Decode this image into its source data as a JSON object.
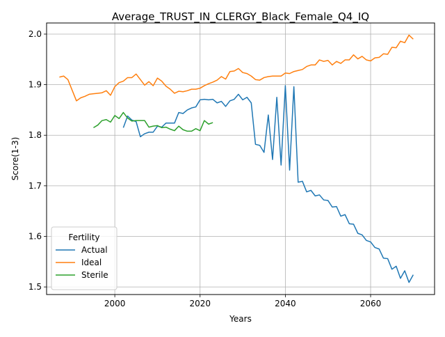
{
  "chart_data": {
    "type": "line",
    "title": "Average_TRUST_IN_CLERGY_Black_Female_Q4_IQ",
    "xlabel": "Years",
    "ylabel": "Score(1-3)",
    "xlim": [
      1984,
      2075
    ],
    "ylim": [
      1.485,
      2.022
    ],
    "xticks": [
      2000,
      2020,
      2040,
      2060
    ],
    "yticks": [
      1.5,
      1.6,
      1.7,
      1.8,
      1.9,
      2.0
    ],
    "grid": true,
    "legend": {
      "title": "Fertility",
      "position": "lower-left"
    },
    "series": [
      {
        "name": "Actual",
        "color": "#1f77b4",
        "x": [
          2002,
          2003,
          2004,
          2005,
          2006,
          2007,
          2008,
          2009,
          2010,
          2011,
          2012,
          2013,
          2014,
          2015,
          2016,
          2017,
          2018,
          2019,
          2020,
          2021,
          2022,
          2023,
          2024,
          2025,
          2026,
          2027,
          2028,
          2029,
          2030,
          2031,
          2032,
          2033,
          2034,
          2035,
          2036,
          2037,
          2038,
          2039,
          2040,
          2041,
          2042,
          2043,
          2044,
          2045,
          2046,
          2047,
          2048,
          2049,
          2050,
          2051,
          2052,
          2053,
          2054,
          2055,
          2056,
          2057,
          2058,
          2059,
          2060,
          2061,
          2062,
          2063,
          2064,
          2065,
          2066,
          2067,
          2068,
          2069,
          2070
        ],
        "values": [
          1.815,
          1.838,
          1.83,
          1.827,
          1.797,
          1.803,
          1.806,
          1.806,
          1.818,
          1.816,
          1.824,
          1.824,
          1.824,
          1.845,
          1.843,
          1.85,
          1.854,
          1.856,
          1.87,
          1.871,
          1.87,
          1.871,
          1.864,
          1.867,
          1.857,
          1.868,
          1.871,
          1.881,
          1.87,
          1.875,
          1.864,
          1.782,
          1.78,
          1.766,
          1.84,
          1.752,
          1.875,
          1.741,
          1.898,
          1.731,
          1.896,
          1.707,
          1.709,
          1.688,
          1.691,
          1.68,
          1.682,
          1.672,
          1.671,
          1.658,
          1.659,
          1.64,
          1.643,
          1.625,
          1.624,
          1.606,
          1.603,
          1.592,
          1.589,
          1.578,
          1.575,
          1.557,
          1.556,
          1.535,
          1.541,
          1.517,
          1.532,
          1.509,
          1.524
        ]
      },
      {
        "name": "Ideal",
        "color": "#ff7f0e",
        "x": [
          1987,
          1988,
          1989,
          1990,
          1991,
          1992,
          1993,
          1994,
          1995,
          1996,
          1997,
          1998,
          1999,
          2000,
          2001,
          2002,
          2003,
          2004,
          2005,
          2006,
          2007,
          2008,
          2009,
          2010,
          2011,
          2012,
          2013,
          2014,
          2015,
          2016,
          2017,
          2018,
          2019,
          2020,
          2021,
          2022,
          2023,
          2024,
          2025,
          2026,
          2027,
          2028,
          2029,
          2030,
          2031,
          2032,
          2033,
          2034,
          2035,
          2036,
          2037,
          2038,
          2039,
          2040,
          2041,
          2042,
          2043,
          2044,
          2045,
          2046,
          2047,
          2048,
          2049,
          2050,
          2051,
          2052,
          2053,
          2054,
          2055,
          2056,
          2057,
          2058,
          2059,
          2060,
          2061,
          2062,
          2063,
          2064,
          2065,
          2066,
          2067,
          2068,
          2069,
          2070
        ],
        "values": [
          1.915,
          1.917,
          1.91,
          1.889,
          1.868,
          1.874,
          1.877,
          1.881,
          1.882,
          1.883,
          1.884,
          1.888,
          1.879,
          1.896,
          1.904,
          1.907,
          1.914,
          1.914,
          1.921,
          1.91,
          1.899,
          1.906,
          1.898,
          1.913,
          1.907,
          1.897,
          1.891,
          1.883,
          1.887,
          1.886,
          1.888,
          1.891,
          1.891,
          1.893,
          1.898,
          1.902,
          1.905,
          1.909,
          1.916,
          1.911,
          1.926,
          1.927,
          1.932,
          1.924,
          1.922,
          1.917,
          1.91,
          1.909,
          1.914,
          1.916,
          1.917,
          1.917,
          1.917,
          1.923,
          1.922,
          1.926,
          1.928,
          1.93,
          1.936,
          1.939,
          1.939,
          1.949,
          1.946,
          1.948,
          1.939,
          1.946,
          1.942,
          1.949,
          1.949,
          1.959,
          1.951,
          1.956,
          1.949,
          1.947,
          1.953,
          1.954,
          1.961,
          1.96,
          1.974,
          1.973,
          1.986,
          1.983,
          1.998,
          1.99
        ]
      },
      {
        "name": "Sterile",
        "color": "#2ca02c",
        "x": [
          1995,
          1996,
          1997,
          1998,
          1999,
          2000,
          2001,
          2002,
          2003,
          2004,
          2005,
          2006,
          2007,
          2008,
          2009,
          2010,
          2011,
          2012,
          2013,
          2014,
          2015,
          2016,
          2017,
          2018,
          2019,
          2020,
          2021,
          2022,
          2023
        ],
        "values": [
          1.815,
          1.82,
          1.829,
          1.831,
          1.826,
          1.839,
          1.833,
          1.845,
          1.834,
          1.828,
          1.829,
          1.829,
          1.829,
          1.816,
          1.818,
          1.819,
          1.815,
          1.816,
          1.812,
          1.809,
          1.818,
          1.811,
          1.808,
          1.808,
          1.813,
          1.809,
          1.829,
          1.822,
          1.825
        ]
      }
    ]
  }
}
